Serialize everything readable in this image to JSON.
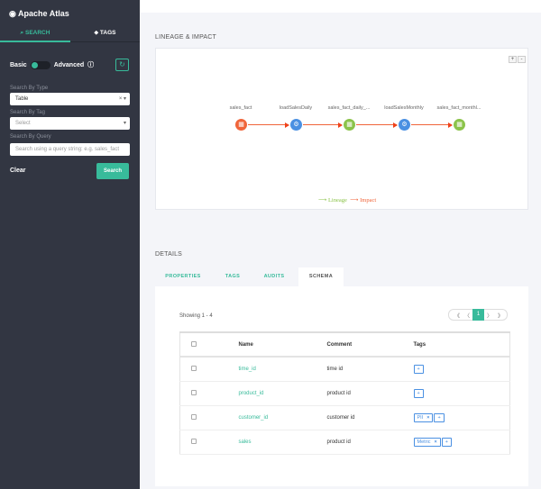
{
  "sidebar": {
    "brand": "Apache Atlas",
    "tabs": [
      "SEARCH",
      "TAGS"
    ],
    "basic": "Basic",
    "advanced": "Advanced",
    "type_label": "Search By Type",
    "type_value": "Table",
    "tag_label": "Search By Tag",
    "tag_placeholder": "Select",
    "query_label": "Search By Query",
    "query_placeholder": "Search using a query string: e.g. sales_fact",
    "clear": "Clear",
    "search": "Search"
  },
  "lineage": {
    "title": "LINEAGE & IMPACT",
    "zoom_in": "+",
    "zoom_out": "-",
    "nodes": [
      {
        "label": "sales_fact",
        "kind": "table",
        "color": "#f0653a"
      },
      {
        "label": "loadSalesDaily",
        "kind": "process",
        "color": "#4a90e2"
      },
      {
        "label": "sales_fact_daily_...",
        "kind": "table",
        "color": "#8bc34a"
      },
      {
        "label": "loadSalesMonthly",
        "kind": "process",
        "color": "#4a90e2"
      },
      {
        "label": "sales_fact_monthl...",
        "kind": "table",
        "color": "#8bc34a"
      }
    ],
    "legend_lineage": "Lineage",
    "legend_impact": "Impact"
  },
  "details": {
    "title": "DETAILS",
    "tabs": [
      "PROPERTIES",
      "TAGS",
      "AUDITS",
      "SCHEMA"
    ],
    "showing": "Showing 1 - 4",
    "page": "1",
    "columns": [
      "Name",
      "Comment",
      "Tags"
    ],
    "rows": [
      {
        "name": "time_id",
        "comment": "time id",
        "tags": []
      },
      {
        "name": "product_id",
        "comment": "product id",
        "tags": []
      },
      {
        "name": "customer_id",
        "comment": "customer id",
        "tags": [
          "PII"
        ]
      },
      {
        "name": "sales",
        "comment": "product id",
        "tags": [
          "Metric"
        ]
      }
    ]
  }
}
